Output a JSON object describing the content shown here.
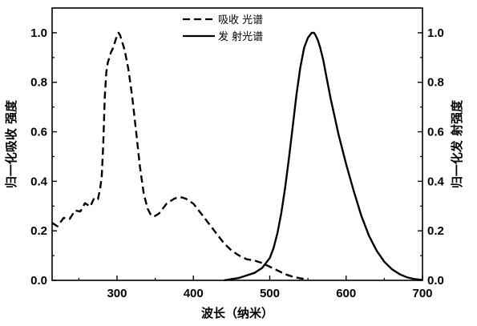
{
  "chart_data": {
    "type": "line",
    "title": "",
    "xlabel": "波长（纳米）",
    "ylabel_left": "归一化吸收 强度",
    "ylabel_right": "归一化发 射强度",
    "xlim": [
      215,
      700
    ],
    "ylim_left": [
      0.0,
      1.1
    ],
    "ylim_right": [
      0.0,
      1.1
    ],
    "x_ticks": [
      "300",
      "400",
      "500",
      "600",
      "700"
    ],
    "x_tick_values": [
      300,
      400,
      500,
      600,
      700
    ],
    "y_ticks": [
      "0.0",
      "0.2",
      "0.4",
      "0.6",
      "0.8",
      "1.0"
    ],
    "y_tick_values": [
      0.0,
      0.2,
      0.4,
      0.6,
      0.8,
      1.0
    ],
    "grid": false,
    "legend_placement": "top-center",
    "series": [
      {
        "name": "吸收 光谱",
        "style": "dashed",
        "axis": "left",
        "x": [
          215,
          222,
          230,
          238,
          245,
          252,
          258,
          265,
          270,
          275,
          278,
          280,
          282,
          284,
          286,
          288,
          290,
          292,
          295,
          298,
          300,
          302,
          304,
          306,
          310,
          315,
          320,
          325,
          330,
          335,
          340,
          345,
          350,
          355,
          360,
          365,
          370,
          375,
          380,
          385,
          390,
          395,
          400,
          405,
          410,
          420,
          430,
          440,
          450,
          460,
          470,
          480,
          490,
          500,
          510,
          520,
          530,
          540,
          550
        ],
        "y": [
          0.22,
          0.23,
          0.24,
          0.26,
          0.27,
          0.29,
          0.3,
          0.31,
          0.32,
          0.34,
          0.36,
          0.42,
          0.55,
          0.74,
          0.84,
          0.88,
          0.9,
          0.92,
          0.94,
          0.97,
          0.99,
          1.0,
          0.99,
          0.97,
          0.93,
          0.85,
          0.74,
          0.6,
          0.46,
          0.35,
          0.29,
          0.26,
          0.26,
          0.27,
          0.29,
          0.31,
          0.32,
          0.33,
          0.335,
          0.335,
          0.33,
          0.32,
          0.31,
          0.29,
          0.27,
          0.23,
          0.19,
          0.15,
          0.12,
          0.1,
          0.085,
          0.08,
          0.07,
          0.055,
          0.04,
          0.025,
          0.015,
          0.008,
          0.004
        ]
      },
      {
        "name": "发 射光谱",
        "style": "solid",
        "axis": "right",
        "x": [
          440,
          460,
          480,
          490,
          500,
          505,
          510,
          515,
          520,
          525,
          530,
          535,
          540,
          545,
          550,
          555,
          558,
          560,
          563,
          566,
          570,
          575,
          580,
          585,
          590,
          600,
          610,
          620,
          630,
          640,
          650,
          660,
          670,
          680,
          690,
          700
        ],
        "y": [
          0.0,
          0.01,
          0.03,
          0.05,
          0.09,
          0.13,
          0.19,
          0.27,
          0.37,
          0.49,
          0.62,
          0.75,
          0.86,
          0.94,
          0.98,
          1.0,
          1.0,
          0.99,
          0.97,
          0.94,
          0.89,
          0.81,
          0.73,
          0.66,
          0.59,
          0.47,
          0.36,
          0.26,
          0.18,
          0.12,
          0.075,
          0.045,
          0.025,
          0.012,
          0.005,
          0.002
        ]
      }
    ]
  }
}
